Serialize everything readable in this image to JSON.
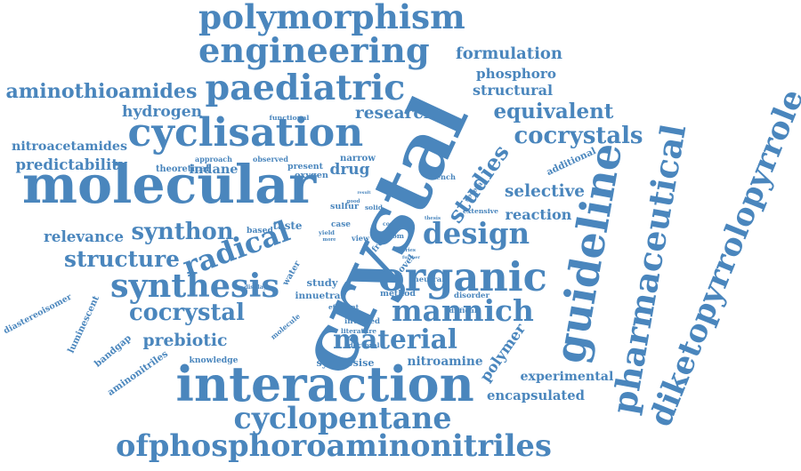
{
  "color": "#4a86bd",
  "words": [
    "crystal",
    "molecular",
    "interaction",
    "guideline",
    "pharmaceutical",
    "diketopyrrolopyrrole",
    "cyclisation",
    "organic",
    "paediatric",
    "engineering",
    "polymorphism",
    "synthesis",
    "ofphosphoroaminonitriles",
    "cyclopentane",
    "mannich",
    "material",
    "radical",
    "design",
    "studies",
    "cocrystal",
    "structure",
    "synthon",
    "aminothioamides",
    "cocrystals",
    "equivalent",
    "prebiotic",
    "formulation",
    "phosphoro",
    "research",
    "structural",
    "selective",
    "reaction",
    "experimental",
    "encapsulated",
    "hydrogen",
    "nitroacetamides",
    "predictability",
    "drug",
    "indane",
    "relevance",
    "polymer",
    "nitroamine",
    "diastereoisomer",
    "luminescent",
    "bandgap",
    "aminonitriles",
    "additional",
    "innuetral",
    "study",
    "method",
    "neutral",
    "novel",
    "water",
    "taste",
    "functional",
    "observed",
    "approach",
    "theoretical",
    "present",
    "oxygen",
    "narrow",
    "bench",
    "involved",
    "literature",
    "doctoral",
    "knowledge",
    "synthesise",
    "molecule",
    "display",
    "sulfur",
    "solid",
    "atom",
    "case",
    "view",
    "yield",
    "based",
    "efficient",
    "disorder",
    "difficult",
    "extensive",
    "several",
    "result",
    "free",
    "series",
    "thesis",
    "further",
    "more",
    "good",
    "cost"
  ]
}
